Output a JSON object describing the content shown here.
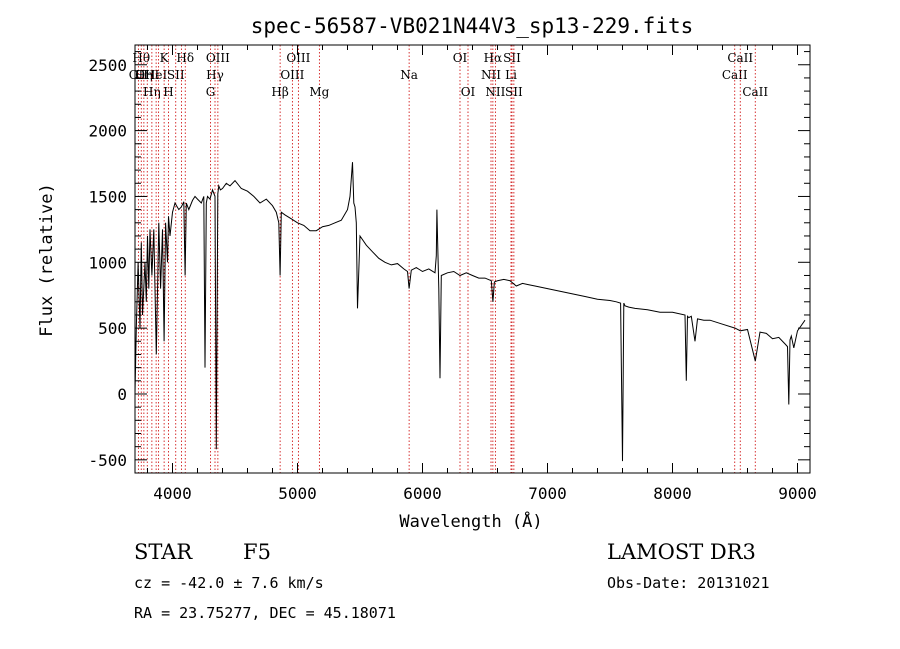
{
  "chart_data": {
    "type": "line",
    "title": "spec-56587-VB021N44V3_sp13-229.fits",
    "xlabel": "Wavelength (Å)",
    "ylabel": "Flux (relative)",
    "xlim": [
      3700,
      9100
    ],
    "ylim": [
      -600,
      2650
    ],
    "xticks": [
      4000,
      5000,
      6000,
      7000,
      8000,
      9000
    ],
    "yticks": [
      -500,
      0,
      500,
      1000,
      1500,
      2000,
      2500
    ],
    "xminor": 200,
    "yminor": 100,
    "series": [
      {
        "name": "flux",
        "x": [
          3700,
          3710,
          3725,
          3740,
          3750,
          3760,
          3780,
          3790,
          3800,
          3810,
          3820,
          3835,
          3850,
          3870,
          3890,
          3905,
          3920,
          3933,
          3945,
          3960,
          3968,
          3980,
          4000,
          4020,
          4050,
          4070,
          4090,
          4101,
          4110,
          4130,
          4160,
          4180,
          4200,
          4230,
          4250,
          4260,
          4270,
          4280,
          4300,
          4320,
          4340,
          4350,
          4362,
          4370,
          4383,
          4400,
          4430,
          4460,
          4500,
          4550,
          4600,
          4650,
          4700,
          4750,
          4800,
          4830,
          4850,
          4861,
          4870,
          4900,
          4950,
          5000,
          5050,
          5100,
          5150,
          5200,
          5250,
          5300,
          5350,
          5400,
          5420,
          5440,
          5450,
          5460,
          5470,
          5480,
          5500,
          5550,
          5600,
          5650,
          5700,
          5750,
          5800,
          5850,
          5880,
          5893,
          5910,
          5950,
          6000,
          6050,
          6100,
          6110,
          6115,
          6120,
          6130,
          6140,
          6150,
          6200,
          6250,
          6300,
          6350,
          6400,
          6450,
          6500,
          6550,
          6563,
          6575,
          6600,
          6650,
          6700,
          6750,
          6800,
          6850,
          6900,
          7000,
          7100,
          7200,
          7300,
          7400,
          7500,
          7550,
          7585,
          7600,
          7610,
          7620,
          7650,
          7700,
          7800,
          7900,
          8000,
          8100,
          8110,
          8120,
          8130,
          8150,
          8180,
          8200,
          8250,
          8300,
          8400,
          8500,
          8542,
          8600,
          8662,
          8700,
          8750,
          8800,
          8850,
          8900,
          8920,
          8930,
          8940,
          8950,
          8970,
          9000,
          9030,
          9060
        ],
        "y": [
          0,
          500,
          1000,
          500,
          1150,
          600,
          1000,
          700,
          1200,
          800,
          1250,
          900,
          1250,
          300,
          1300,
          800,
          1250,
          400,
          1300,
          1000,
          1350,
          1200,
          1380,
          1450,
          1400,
          1420,
          1460,
          900,
          1450,
          1400,
          1470,
          1500,
          1480,
          1450,
          1500,
          200,
          1450,
          1500,
          1480,
          1550,
          1500,
          -420,
          1520,
          1580,
          1550,
          1560,
          1600,
          1580,
          1620,
          1560,
          1540,
          1500,
          1450,
          1480,
          1430,
          1380,
          1300,
          900,
          1380,
          1360,
          1330,
          1300,
          1280,
          1240,
          1240,
          1270,
          1280,
          1300,
          1320,
          1400,
          1500,
          1760,
          1450,
          1420,
          1300,
          650,
          1200,
          1130,
          1080,
          1030,
          1000,
          980,
          990,
          950,
          930,
          800,
          940,
          960,
          930,
          950,
          920,
          1050,
          1400,
          1200,
          800,
          120,
          900,
          920,
          930,
          900,
          920,
          900,
          880,
          880,
          860,
          700,
          850,
          860,
          870,
          860,
          820,
          840,
          830,
          820,
          800,
          780,
          760,
          740,
          720,
          710,
          700,
          690,
          -510,
          690,
          670,
          660,
          650,
          640,
          620,
          620,
          600,
          100,
          590,
          580,
          590,
          400,
          570,
          560,
          560,
          530,
          500,
          480,
          490,
          250,
          470,
          460,
          420,
          430,
          380,
          360,
          -80,
          410,
          440,
          350,
          480,
          520,
          560
        ]
      }
    ],
    "lines": [
      {
        "w": 3727,
        "label": "OII",
        "row": 2
      },
      {
        "w": 3750,
        "label": "Hθ",
        "row": 1
      },
      {
        "w": 3771,
        "label": "Hη",
        "row": 2
      },
      {
        "w": 3798,
        "label": "OIII",
        "row": 2
      },
      {
        "w": 3835,
        "label": "Hη",
        "row": 3
      },
      {
        "w": 3869,
        "label": "HeI",
        "row": 2
      },
      {
        "w": 3889,
        "label": "",
        "row": 0
      },
      {
        "w": 3933,
        "label": "K",
        "row": 1
      },
      {
        "w": 3968,
        "label": "H",
        "row": 3
      },
      {
        "w": 4026,
        "label": "SII",
        "row": 2
      },
      {
        "w": 4072,
        "label": "",
        "row": 0
      },
      {
        "w": 4102,
        "label": "Hδ",
        "row": 1
      },
      {
        "w": 4304,
        "label": "G",
        "row": 3
      },
      {
        "w": 4340,
        "label": "Hγ",
        "row": 2
      },
      {
        "w": 4363,
        "label": "OIII",
        "row": 1
      },
      {
        "w": 4861,
        "label": "Hβ",
        "row": 3
      },
      {
        "w": 4959,
        "label": "OIII",
        "row": 2
      },
      {
        "w": 5007,
        "label": "OIII",
        "row": 1
      },
      {
        "w": 5175,
        "label": "Mg",
        "row": 3
      },
      {
        "w": 5893,
        "label": "Na",
        "row": 2
      },
      {
        "w": 6300,
        "label": "OI",
        "row": 1
      },
      {
        "w": 6364,
        "label": "OI",
        "row": 3
      },
      {
        "w": 6548,
        "label": "NII",
        "row": 2
      },
      {
        "w": 6563,
        "label": "Hα",
        "row": 1
      },
      {
        "w": 6583,
        "label": "NII",
        "row": 3
      },
      {
        "w": 6708,
        "label": "Li",
        "row": 2
      },
      {
        "w": 6716,
        "label": "SII",
        "row": 1
      },
      {
        "w": 6731,
        "label": "SII",
        "row": 3
      },
      {
        "w": 8498,
        "label": "CaII",
        "row": 2
      },
      {
        "w": 8542,
        "label": "CaII",
        "row": 1
      },
      {
        "w": 8662,
        "label": "CaII",
        "row": 3
      }
    ]
  },
  "info": {
    "object_class": "STAR",
    "subclass": "F5",
    "survey": "LAMOST DR3",
    "cz": "cz = -42.0 ± 7.6 km/s",
    "obs_date": "Obs-Date: 20131021",
    "coords": "RA =  23.75277, DEC =  45.18071"
  }
}
